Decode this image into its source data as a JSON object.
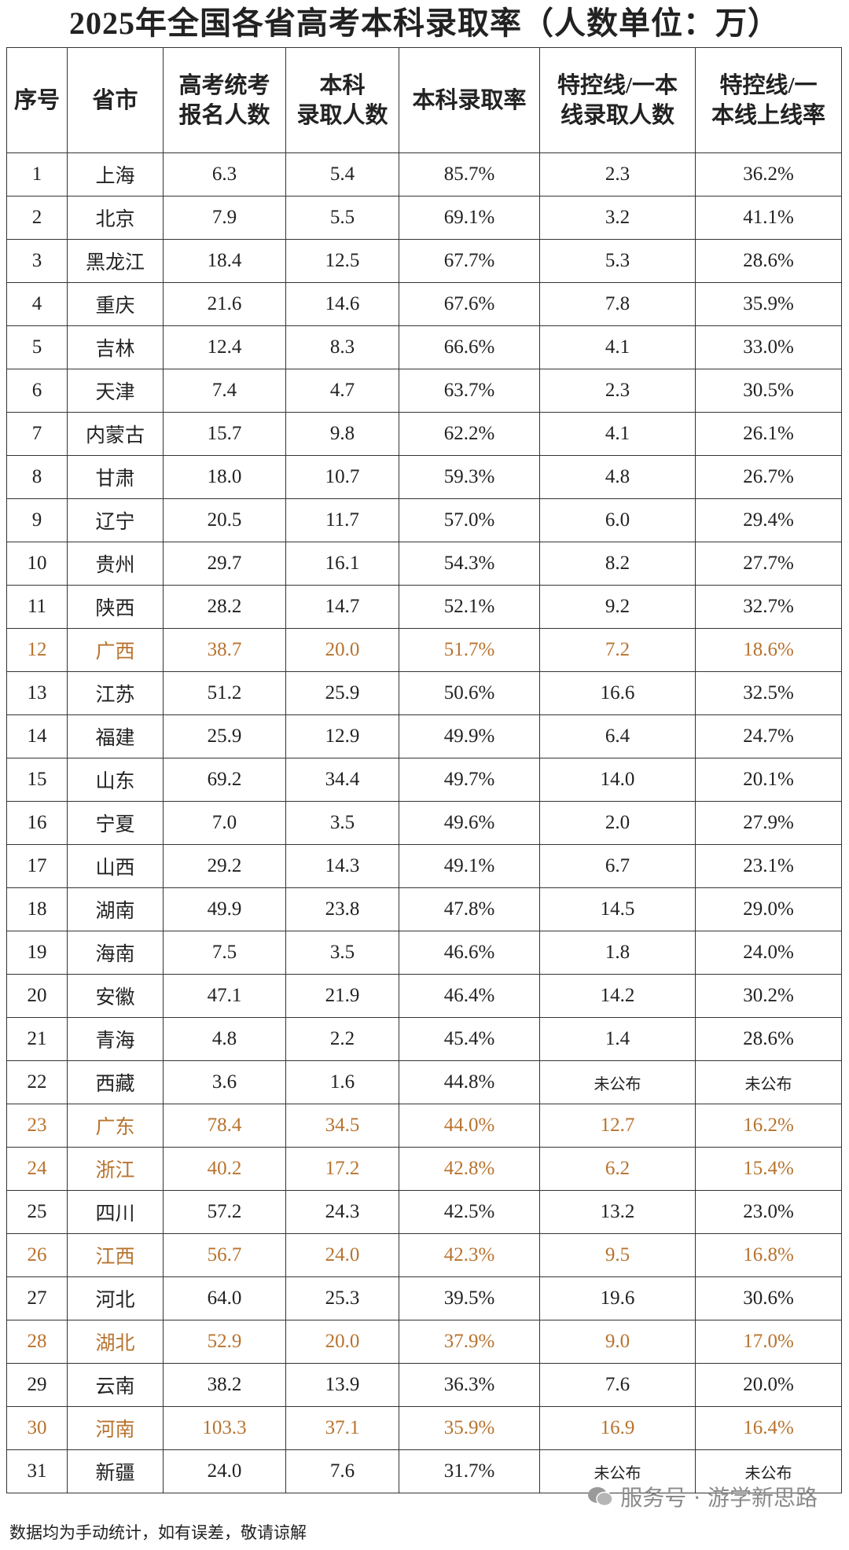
{
  "title": "2025年全国各省高考本科录取率（人数单位：万）",
  "table": {
    "header": [
      [
        "序号"
      ],
      [
        "省市"
      ],
      [
        "高考统考",
        "报名人数"
      ],
      [
        "本科",
        "录取人数"
      ],
      [
        "本科录取率"
      ],
      [
        "特控线/一本",
        "线录取人数"
      ],
      [
        "特控线/一",
        "本线上线率"
      ]
    ],
    "rows": [
      {
        "color": "#222222",
        "cells": [
          "1",
          "上海",
          "6.3",
          "5.4",
          "85.7%",
          "2.3",
          "36.2%"
        ]
      },
      {
        "color": "#222222",
        "cells": [
          "2",
          "北京",
          "7.9",
          "5.5",
          "69.1%",
          "3.2",
          "41.1%"
        ]
      },
      {
        "color": "#222222",
        "cells": [
          "3",
          "黑龙江",
          "18.4",
          "12.5",
          "67.7%",
          "5.3",
          "28.6%"
        ]
      },
      {
        "color": "#222222",
        "cells": [
          "4",
          "重庆",
          "21.6",
          "14.6",
          "67.6%",
          "7.8",
          "35.9%"
        ]
      },
      {
        "color": "#222222",
        "cells": [
          "5",
          "吉林",
          "12.4",
          "8.3",
          "66.6%",
          "4.1",
          "33.0%"
        ]
      },
      {
        "color": "#222222",
        "cells": [
          "6",
          "天津",
          "7.4",
          "4.7",
          "63.7%",
          "2.3",
          "30.5%"
        ]
      },
      {
        "color": "#222222",
        "cells": [
          "7",
          "内蒙古",
          "15.7",
          "9.8",
          "62.2%",
          "4.1",
          "26.1%"
        ]
      },
      {
        "color": "#222222",
        "cells": [
          "8",
          "甘肃",
          "18.0",
          "10.7",
          "59.3%",
          "4.8",
          "26.7%"
        ]
      },
      {
        "color": "#222222",
        "cells": [
          "9",
          "辽宁",
          "20.5",
          "11.7",
          "57.0%",
          "6.0",
          "29.4%"
        ]
      },
      {
        "color": "#222222",
        "cells": [
          "10",
          "贵州",
          "29.7",
          "16.1",
          "54.3%",
          "8.2",
          "27.7%"
        ]
      },
      {
        "color": "#222222",
        "cells": [
          "11",
          "陕西",
          "28.2",
          "14.7",
          "52.1%",
          "9.2",
          "32.7%"
        ]
      },
      {
        "color": "#b8732e",
        "cells": [
          "12",
          "广西",
          "38.7",
          "20.0",
          "51.7%",
          "7.2",
          "18.6%"
        ]
      },
      {
        "color": "#222222",
        "cells": [
          "13",
          "江苏",
          "51.2",
          "25.9",
          "50.6%",
          "16.6",
          "32.5%"
        ]
      },
      {
        "color": "#222222",
        "cells": [
          "14",
          "福建",
          "25.9",
          "12.9",
          "49.9%",
          "6.4",
          "24.7%"
        ]
      },
      {
        "color": "#222222",
        "cells": [
          "15",
          "山东",
          "69.2",
          "34.4",
          "49.7%",
          "14.0",
          "20.1%"
        ]
      },
      {
        "color": "#222222",
        "cells": [
          "16",
          "宁夏",
          "7.0",
          "3.5",
          "49.6%",
          "2.0",
          "27.9%"
        ]
      },
      {
        "color": "#222222",
        "cells": [
          "17",
          "山西",
          "29.2",
          "14.3",
          "49.1%",
          "6.7",
          "23.1%"
        ]
      },
      {
        "color": "#222222",
        "cells": [
          "18",
          "湖南",
          "49.9",
          "23.8",
          "47.8%",
          "14.5",
          "29.0%"
        ]
      },
      {
        "color": "#222222",
        "cells": [
          "19",
          "海南",
          "7.5",
          "3.5",
          "46.6%",
          "1.8",
          "24.0%"
        ]
      },
      {
        "color": "#222222",
        "cells": [
          "20",
          "安徽",
          "47.1",
          "21.9",
          "46.4%",
          "14.2",
          "30.2%"
        ]
      },
      {
        "color": "#222222",
        "cells": [
          "21",
          "青海",
          "4.8",
          "2.2",
          "45.4%",
          "1.4",
          "28.6%"
        ]
      },
      {
        "color": "#222222",
        "cells": [
          "22",
          "西藏",
          "3.6",
          "1.6",
          "44.8%",
          "未公布",
          "未公布"
        ]
      },
      {
        "color": "#b8732e",
        "cells": [
          "23",
          "广东",
          "78.4",
          "34.5",
          "44.0%",
          "12.7",
          "16.2%"
        ]
      },
      {
        "color": "#b8732e",
        "cells": [
          "24",
          "浙江",
          "40.2",
          "17.2",
          "42.8%",
          "6.2",
          "15.4%"
        ]
      },
      {
        "color": "#222222",
        "cells": [
          "25",
          "四川",
          "57.2",
          "24.3",
          "42.5%",
          "13.2",
          "23.0%"
        ]
      },
      {
        "color": "#b8732e",
        "cells": [
          "26",
          "江西",
          "56.7",
          "24.0",
          "42.3%",
          "9.5",
          "16.8%"
        ]
      },
      {
        "color": "#222222",
        "cells": [
          "27",
          "河北",
          "64.0",
          "25.3",
          "39.5%",
          "19.6",
          "30.6%"
        ]
      },
      {
        "color": "#b8732e",
        "cells": [
          "28",
          "湖北",
          "52.9",
          "20.0",
          "37.9%",
          "9.0",
          "17.0%"
        ]
      },
      {
        "color": "#222222",
        "cells": [
          "29",
          "云南",
          "38.2",
          "13.9",
          "36.3%",
          "7.6",
          "20.0%"
        ]
      },
      {
        "color": "#b8732e",
        "cells": [
          "30",
          "河南",
          "103.3",
          "37.1",
          "35.9%",
          "16.9",
          "16.4%"
        ]
      },
      {
        "color": "#222222",
        "cells": [
          "31",
          "新疆",
          "24.0",
          "7.6",
          "31.7%",
          "未公布",
          "未公布"
        ]
      }
    ]
  },
  "footer": {
    "note": "数据均为手动统计，如有误差，敬请谅解",
    "watermark": "服务号 · 游学新思路"
  }
}
